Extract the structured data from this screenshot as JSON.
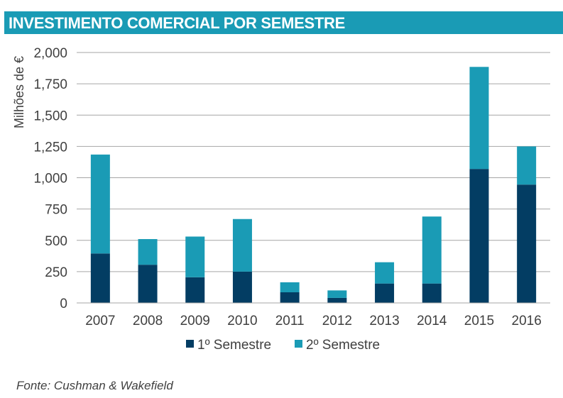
{
  "title": "INVESTIMENTO COMERCIAL POR SEMESTRE",
  "source": "Fonte: Cushman & Wakefield",
  "colors": {
    "title_bar": "#1a9bb5",
    "series1": "#033d63",
    "series2": "#1a9bb5",
    "grid": "#a6a6a6",
    "text": "#404040"
  },
  "chart_data": {
    "type": "bar",
    "stacked": true,
    "title": "INVESTIMENTO COMERCIAL POR SEMESTRE",
    "xlabel": "",
    "ylabel": "Milhões de €",
    "ylim": [
      0,
      2000
    ],
    "yticks": [
      0,
      250,
      500,
      750,
      1000,
      1250,
      1500,
      1750,
      2000
    ],
    "ytick_labels": [
      "0",
      "250",
      "500",
      "750",
      "1,000",
      "1,250",
      "1,500",
      "1,750",
      "2,000"
    ],
    "grid": true,
    "legend_position": "bottom",
    "categories": [
      "2007",
      "2008",
      "2009",
      "2010",
      "2011",
      "2012",
      "2013",
      "2014",
      "2015",
      "2016"
    ],
    "series": [
      {
        "name": "1º Semestre",
        "values": [
          395,
          305,
          205,
          250,
          85,
          40,
          155,
          155,
          1070,
          945
        ]
      },
      {
        "name": "2º Semestre",
        "values": [
          790,
          205,
          325,
          420,
          80,
          60,
          170,
          535,
          815,
          305
        ]
      }
    ]
  }
}
